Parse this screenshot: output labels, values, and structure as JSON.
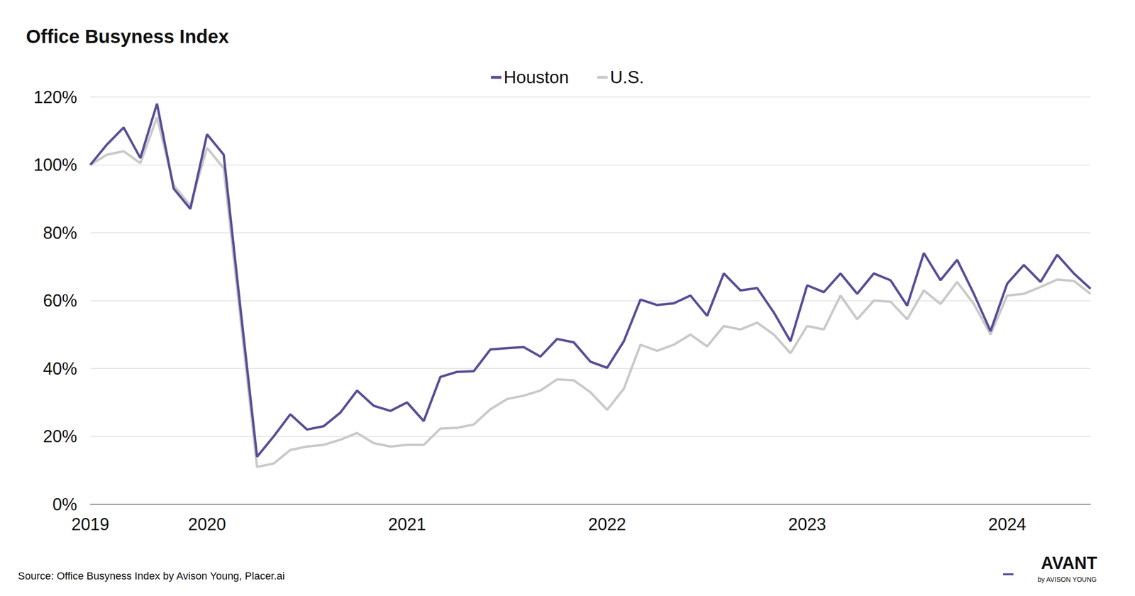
{
  "chart_data": {
    "type": "line",
    "title": "Office Busyness Index",
    "source": "Source: Office Busyness Index by Avison Young, Placer.ai",
    "logo": "AVANT",
    "logo_sub": "by AVISON YOUNG",
    "categories": [
      "2019",
      null,
      null,
      null,
      null,
      null,
      null,
      "2020",
      null,
      null,
      null,
      null,
      null,
      null,
      null,
      null,
      null,
      null,
      null,
      "2021",
      null,
      null,
      null,
      null,
      null,
      null,
      null,
      null,
      null,
      null,
      null,
      "2022",
      null,
      null,
      null,
      null,
      null,
      null,
      null,
      null,
      null,
      null,
      null,
      "2023",
      null,
      null,
      null,
      null,
      null,
      null,
      null,
      null,
      null,
      null,
      null,
      "2024",
      null,
      null,
      null,
      null,
      null
    ],
    "series": [
      {
        "name": "Houston",
        "color": "#594d96",
        "values": [
          100,
          106,
          111,
          102,
          118,
          93,
          87,
          109,
          103,
          58,
          14,
          20,
          26.5,
          22,
          23,
          27,
          33.5,
          29,
          27.5,
          30,
          24.5,
          37.5,
          39,
          39.2,
          45.6,
          46,
          46.3,
          43.5,
          48.7,
          47.7,
          42,
          40.2,
          48,
          60.3,
          58.7,
          59.2,
          61.5,
          55.5,
          68,
          63,
          63.7,
          56.5,
          48,
          64.5,
          62.5,
          68,
          62,
          68,
          66,
          58.5,
          74,
          66,
          72,
          62,
          51,
          65,
          70.5,
          65.5,
          73.5,
          68,
          63.5
        ]
      },
      {
        "name": "U.S.",
        "color": "#c9c9c9",
        "values": [
          100,
          103,
          104,
          100.5,
          114,
          94,
          88,
          105,
          99,
          55,
          11,
          12,
          16,
          17,
          17.5,
          19,
          21,
          18,
          17,
          17.5,
          17.5,
          22.3,
          22.5,
          23.5,
          28,
          31,
          32,
          33.5,
          36.8,
          36.5,
          33,
          27.8,
          34,
          47,
          45.2,
          47,
          50,
          46.5,
          52.5,
          51.5,
          53.5,
          50,
          44.5,
          52.5,
          51.5,
          61.5,
          54.5,
          60,
          59.7,
          54.5,
          63,
          59,
          65.5,
          59,
          50,
          61.5,
          62,
          64,
          66.2,
          65.8,
          62
        ]
      }
    ],
    "ylim": [
      0,
      120
    ],
    "yticks": [
      {
        "value": 0,
        "label": "0%"
      },
      {
        "value": 20,
        "label": "20%"
      },
      {
        "value": 40,
        "label": "40%"
      },
      {
        "value": 60,
        "label": "60%"
      },
      {
        "value": 80,
        "label": "80%"
      },
      {
        "value": 100,
        "label": "100%"
      },
      {
        "value": 120,
        "label": "120%"
      }
    ],
    "grid": true,
    "legend": "top"
  }
}
